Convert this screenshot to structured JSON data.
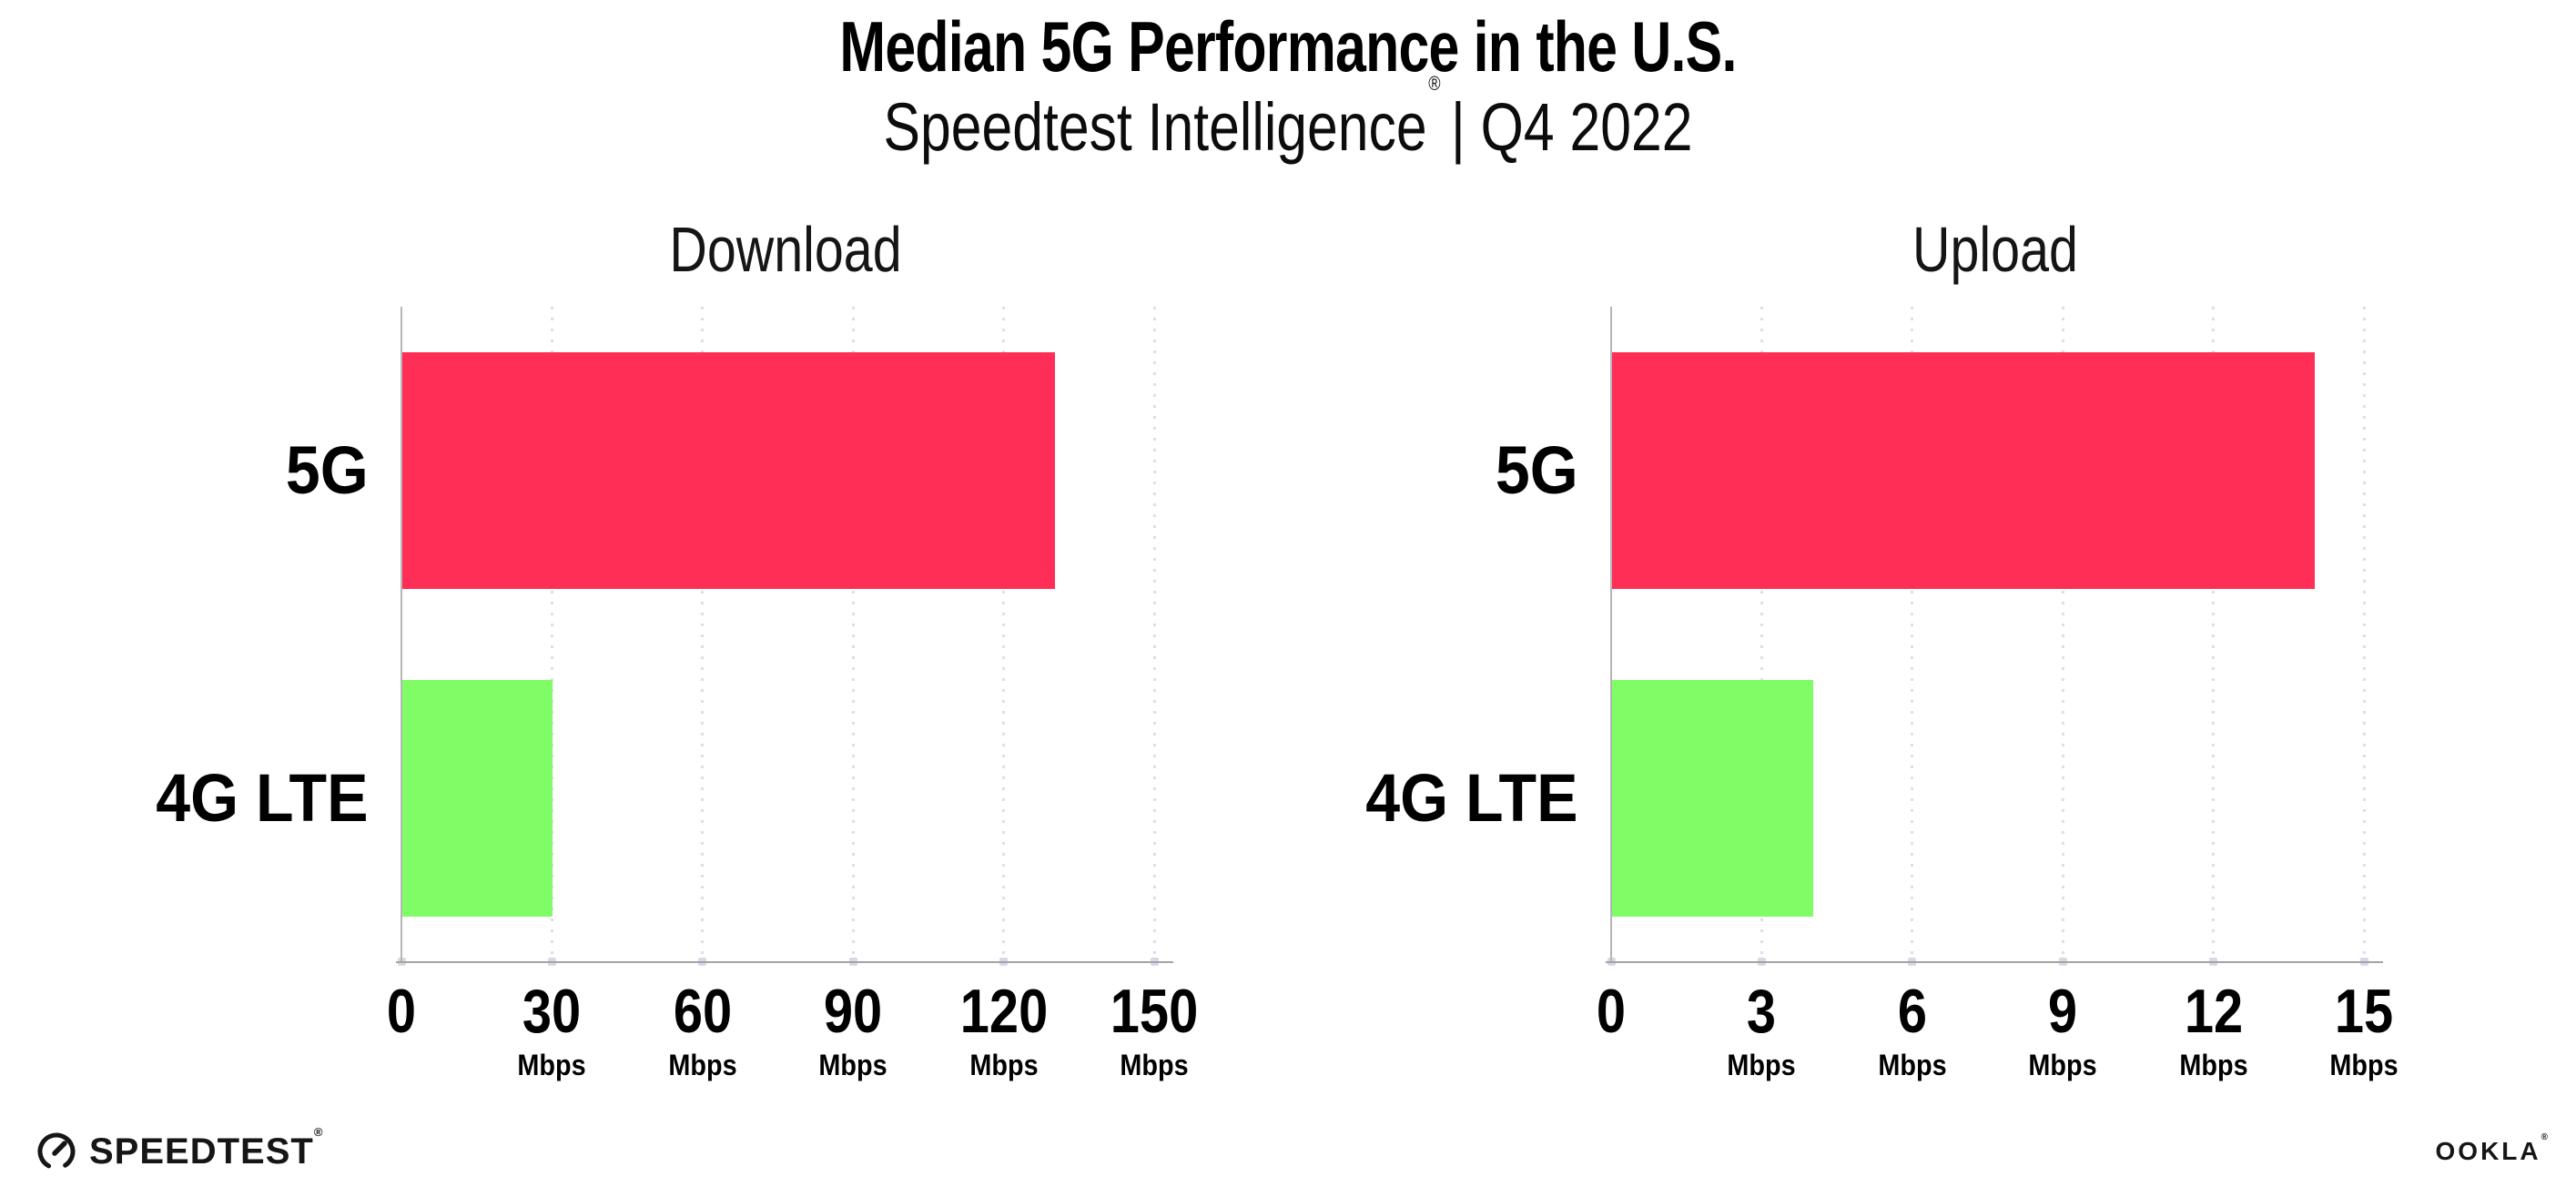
{
  "title": "Median 5G Performance in the U.S.",
  "subtitle": {
    "brand": "Speedtest Intelligence",
    "registered": "®",
    "rest": "| Q4 2022"
  },
  "chart_data": [
    {
      "type": "bar",
      "orientation": "horizontal",
      "title": "Download",
      "categories": [
        "5G",
        "4G LTE"
      ],
      "values": [
        130,
        30
      ],
      "unit": "Mbps",
      "colors": [
        "#ff2e56",
        "#80fc66"
      ],
      "x_ticks": [
        0,
        30,
        60,
        90,
        120,
        150
      ],
      "x_tick_unit": "Mbps",
      "xlim": [
        0,
        153
      ],
      "grid": "dotted vertical gridlines at each tick",
      "legend": "none"
    },
    {
      "type": "bar",
      "orientation": "horizontal",
      "title": "Upload",
      "categories": [
        "5G",
        "4G LTE"
      ],
      "values": [
        14,
        4
      ],
      "unit": "Mbps",
      "colors": [
        "#ff2e56",
        "#80fc66"
      ],
      "x_ticks": [
        0,
        3,
        6,
        9,
        12,
        15
      ],
      "x_tick_unit": "Mbps",
      "xlim": [
        0,
        15.3
      ],
      "grid": "dotted vertical gridlines at each tick",
      "legend": "none"
    }
  ],
  "footer": {
    "speedtest_label": "SPEEDTEST",
    "speedtest_registered": "®",
    "ookla_label": "OOKLA",
    "ookla_registered": "®"
  },
  "style": {
    "bar_color_5g": "#ff2e56",
    "bar_color_4g_lte": "#80fc66",
    "gridline_color": "#dddeea",
    "axis_color": "#a4a4a4",
    "background": "#ffffff"
  }
}
